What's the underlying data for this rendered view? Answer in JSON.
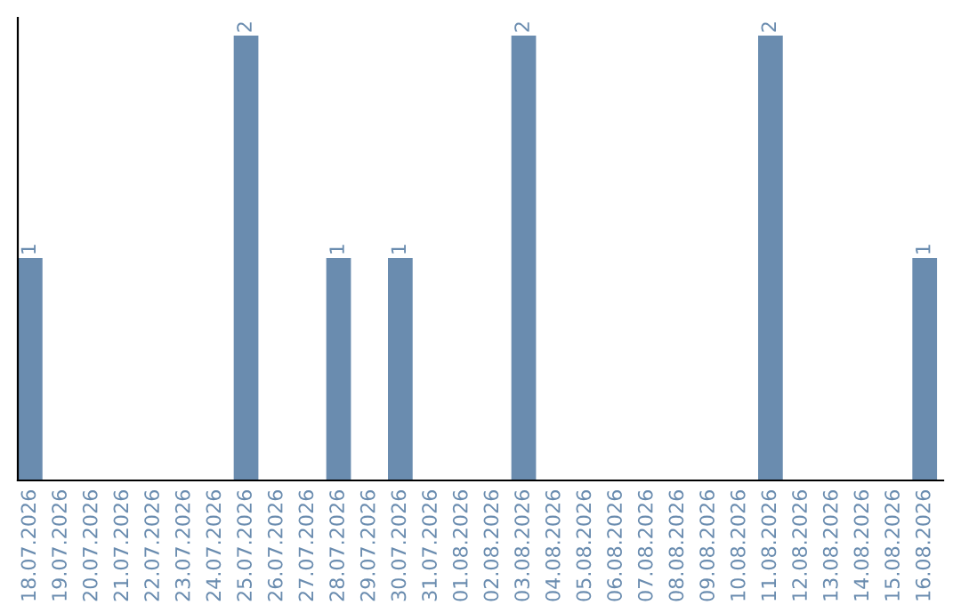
{
  "chart_data": {
    "type": "bar",
    "categories": [
      "18.07.2026",
      "19.07.2026",
      "20.07.2026",
      "21.07.2026",
      "22.07.2026",
      "23.07.2026",
      "24.07.2026",
      "25.07.2026",
      "26.07.2026",
      "27.07.2026",
      "28.07.2026",
      "29.07.2026",
      "30.07.2026",
      "31.07.2026",
      "01.08.2026",
      "02.08.2026",
      "03.08.2026",
      "04.08.2026",
      "05.08.2026",
      "06.08.2026",
      "07.08.2026",
      "08.08.2026",
      "09.08.2026",
      "10.08.2026",
      "11.08.2026",
      "12.08.2026",
      "13.08.2026",
      "14.08.2026",
      "15.08.2026",
      "16.08.2026"
    ],
    "values": [
      1,
      0,
      0,
      0,
      0,
      0,
      0,
      2,
      0,
      0,
      1,
      0,
      1,
      0,
      0,
      0,
      2,
      0,
      0,
      0,
      0,
      0,
      0,
      0,
      2,
      0,
      0,
      0,
      0,
      1
    ],
    "value_labels": [
      "1",
      null,
      null,
      null,
      null,
      null,
      null,
      "2",
      null,
      null,
      "1",
      null,
      "1",
      null,
      null,
      null,
      "2",
      null,
      null,
      null,
      null,
      null,
      null,
      null,
      "2",
      null,
      null,
      null,
      null,
      "1"
    ],
    "color": "#6a8caf",
    "grid": false,
    "legend": false
  }
}
